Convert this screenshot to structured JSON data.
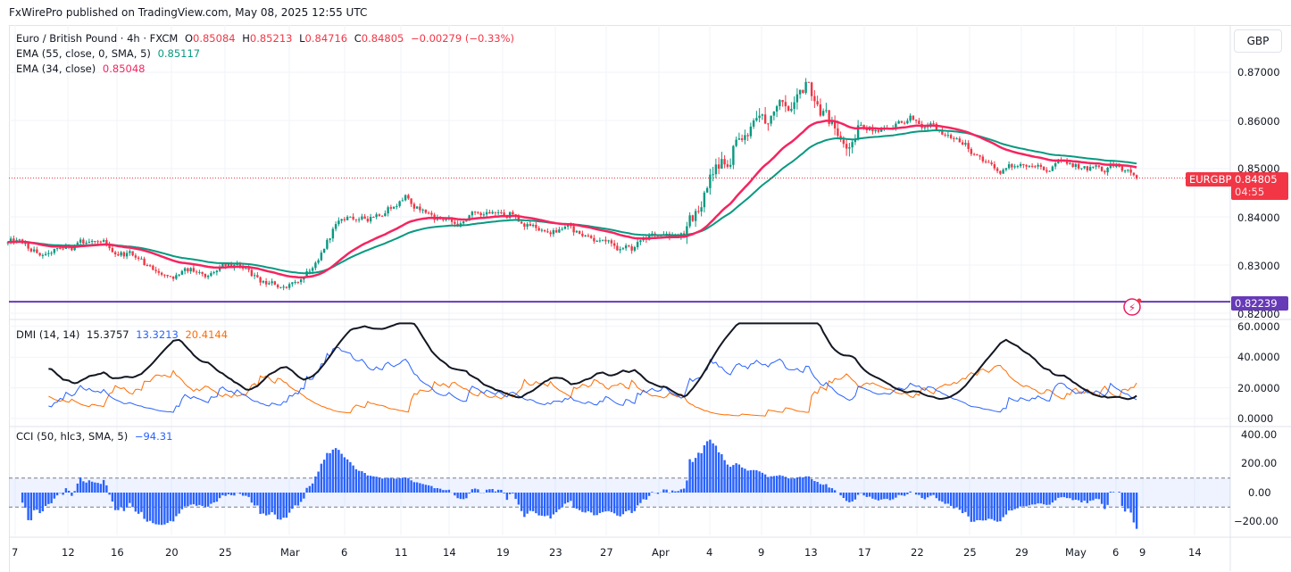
{
  "publisher": "FxWirePro published on TradingView.com, May 08, 2025 12:55 UTC",
  "symbol": {
    "name": "Euro / British Pound · 4h · FXCM",
    "o_label": "O",
    "o": "0.85084",
    "h_label": "H",
    "h": "0.85213",
    "l_label": "L",
    "l": "0.84716",
    "c_label": "C",
    "c": "0.84805",
    "change": "−0.00279 (−0.33%)"
  },
  "indicators": {
    "ema55": {
      "label": "EMA (55, close, 0, SMA, 5)",
      "value": "0.85117",
      "color": "#089981"
    },
    "ema34": {
      "label": "EMA (34, close)",
      "value": "0.85048",
      "color": "#f7245f"
    },
    "dmi": {
      "label": "DMI (14, 14)",
      "adx": "15.3757",
      "plus_di": "13.3213",
      "minus_di": "20.4144",
      "colors": {
        "adx": "#131722",
        "plus_di": "#2962ff",
        "minus_di": "#ff6d00"
      }
    },
    "cci": {
      "label": "CCI (50, hlc3, SMA, 5)",
      "value": "−94.31",
      "color": "#2962ff"
    }
  },
  "currency_button": "GBP",
  "price_scale": [
    "0.87000",
    "0.86000",
    "0.85000",
    "0.84000",
    "0.83000",
    "0.82000"
  ],
  "dmi_scale": [
    "60.0000",
    "40.0000",
    "20.0000",
    "0.0000"
  ],
  "cci_scale": [
    "400.00",
    "200.00",
    "0.00",
    "−200.00"
  ],
  "last_price": {
    "symbol": "EURGBP",
    "price": "0.84805",
    "countdown": "04:55",
    "color": "#f23645"
  },
  "horizontal_line": {
    "price": "0.82239",
    "color": "#673ab7"
  },
  "x_axis": [
    "7",
    "12",
    "16",
    "20",
    "25",
    "Mar",
    "6",
    "11",
    "14",
    "19",
    "23",
    "27",
    "Apr",
    "4",
    "9",
    "13",
    "17",
    "22",
    "25",
    "29",
    "May",
    "6",
    "9",
    "14"
  ],
  "chart_data": {
    "type": "candlestick",
    "timeframe": "4h",
    "daily_closes": [
      [
        "2025-02-07",
        0.8345
      ],
      [
        "2025-02-10",
        0.832
      ],
      [
        "2025-02-11",
        0.8335
      ],
      [
        "2025-02-12",
        0.834
      ],
      [
        "2025-02-13",
        0.835
      ],
      [
        "2025-02-14",
        0.8335
      ],
      [
        "2025-02-17",
        0.8325
      ],
      [
        "2025-02-18",
        0.83
      ],
      [
        "2025-02-19",
        0.828
      ],
      [
        "2025-02-20",
        0.828
      ],
      [
        "2025-02-21",
        0.8285
      ],
      [
        "2025-02-24",
        0.8285
      ],
      [
        "2025-02-25",
        0.8295
      ],
      [
        "2025-02-26",
        0.829
      ],
      [
        "2025-02-27",
        0.826
      ],
      [
        "2025-02-28",
        0.8255
      ],
      [
        "2025-03-03",
        0.827
      ],
      [
        "2025-03-04",
        0.831
      ],
      [
        "2025-03-05",
        0.8385
      ],
      [
        "2025-03-06",
        0.8395
      ],
      [
        "2025-03-07",
        0.84
      ],
      [
        "2025-03-10",
        0.842
      ],
      [
        "2025-03-11",
        0.8445
      ],
      [
        "2025-03-12",
        0.8415
      ],
      [
        "2025-03-13",
        0.8395
      ],
      [
        "2025-03-14",
        0.838
      ],
      [
        "2025-03-17",
        0.841
      ],
      [
        "2025-03-18",
        0.841
      ],
      [
        "2025-03-19",
        0.841
      ],
      [
        "2025-03-20",
        0.8385
      ],
      [
        "2025-03-21",
        0.837
      ],
      [
        "2025-03-24",
        0.8375
      ],
      [
        "2025-03-25",
        0.8365
      ],
      [
        "2025-03-26",
        0.835
      ],
      [
        "2025-03-27",
        0.834
      ],
      [
        "2025-03-28",
        0.833
      ],
      [
        "2025-03-31",
        0.836
      ],
      [
        "2025-04-01",
        0.8365
      ],
      [
        "2025-04-02",
        0.836
      ],
      [
        "2025-04-03",
        0.842
      ],
      [
        "2025-04-04",
        0.85
      ],
      [
        "2025-04-07",
        0.856
      ],
      [
        "2025-04-08",
        0.86
      ],
      [
        "2025-04-09",
        0.861
      ],
      [
        "2025-04-10",
        0.862
      ],
      [
        "2025-04-11",
        0.868
      ],
      [
        "2025-04-14",
        0.862
      ],
      [
        "2025-04-15",
        0.856
      ],
      [
        "2025-04-16",
        0.859
      ],
      [
        "2025-04-17",
        0.858
      ],
      [
        "2025-04-18",
        0.8585
      ],
      [
        "2025-04-21",
        0.861
      ],
      [
        "2025-04-22",
        0.859
      ],
      [
        "2025-04-23",
        0.857
      ],
      [
        "2025-04-24",
        0.855
      ],
      [
        "2025-04-25",
        0.8525
      ],
      [
        "2025-04-28",
        0.8495
      ],
      [
        "2025-04-29",
        0.8505
      ],
      [
        "2025-04-30",
        0.8505
      ],
      [
        "2025-05-01",
        0.8495
      ],
      [
        "2025-05-02",
        0.851
      ],
      [
        "2025-05-05",
        0.8505
      ],
      [
        "2025-05-06",
        0.8495
      ],
      [
        "2025-05-07",
        0.8505
      ],
      [
        "2025-05-08",
        0.848
      ]
    ],
    "price_range": [
      0.8195,
      0.875
    ],
    "dmi_range": [
      0,
      65
    ],
    "cci_range": [
      -260,
      420
    ],
    "cci_band": [
      -100,
      100
    ],
    "up_color": "#089981",
    "down_color": "#f23645",
    "grid": true
  }
}
